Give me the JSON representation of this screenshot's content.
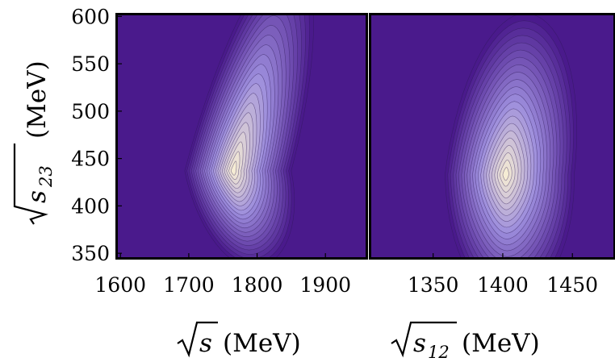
{
  "chart_data": [
    {
      "type": "heatmap",
      "subtype": "contour",
      "xlabel": {
        "radicand": "s",
        "subscript": "",
        "unit": "(MeV)"
      },
      "ylabel": {
        "radicand": "s",
        "subscript": "23",
        "unit": "(MeV)"
      },
      "xlim": [
        1595,
        1960
      ],
      "ylim": [
        345,
        602
      ],
      "x_ticks": [
        1600,
        1700,
        1800,
        1900
      ],
      "y_ticks": [
        350,
        400,
        450,
        500,
        550,
        600
      ],
      "peak": {
        "x": 1765,
        "y": 437
      },
      "contour_levels": 22,
      "colors": {
        "low": "#4a1a8c",
        "mid": "#9c8cdc",
        "high": "#f5ecd4",
        "line": "#2d1a55"
      }
    },
    {
      "type": "heatmap",
      "subtype": "contour",
      "xlabel": {
        "radicand": "s",
        "subscript": "12",
        "unit": "(MeV)"
      },
      "ylabel": {
        "radicand": "s",
        "subscript": "23",
        "unit": "(MeV)"
      },
      "xlim": [
        1305,
        1480
      ],
      "ylim": [
        345,
        602
      ],
      "x_ticks": [
        1350,
        1400,
        1450
      ],
      "y_ticks": [
        350,
        400,
        450,
        500,
        550,
        600
      ],
      "peak": {
        "x": 1402,
        "y": 433
      },
      "contour_levels": 22,
      "colors": {
        "low": "#4a1a8c",
        "mid": "#9c8cdc",
        "high": "#f5ecd4",
        "line": "#2d1a55"
      }
    }
  ]
}
